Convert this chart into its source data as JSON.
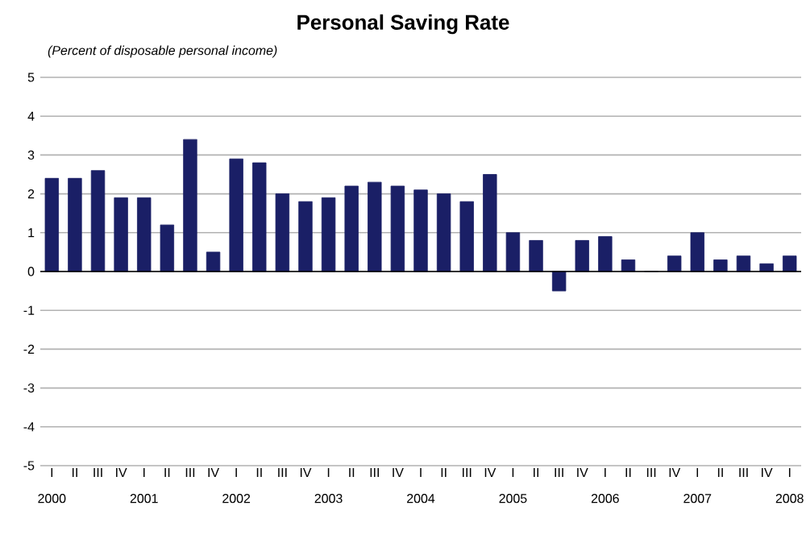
{
  "chart_data": {
    "type": "bar",
    "title": "Personal Saving Rate",
    "subtitle": "(Percent of disposable personal income)",
    "categories": [
      "I",
      "II",
      "III",
      "IV",
      "I",
      "II",
      "III",
      "IV",
      "I",
      "II",
      "III",
      "IV",
      "I",
      "II",
      "III",
      "IV",
      "I",
      "II",
      "III",
      "IV",
      "I",
      "II",
      "III",
      "IV",
      "I",
      "II",
      "III",
      "IV",
      "I",
      "II",
      "III",
      "IV",
      "I"
    ],
    "values": [
      2.4,
      2.4,
      2.6,
      1.9,
      1.9,
      1.2,
      3.4,
      0.5,
      2.9,
      2.8,
      2.0,
      1.8,
      1.9,
      2.2,
      2.3,
      2.2,
      2.1,
      2.0,
      1.8,
      2.5,
      1.0,
      0.8,
      -0.5,
      0.8,
      0.9,
      0.3,
      0.0,
      0.4,
      1.0,
      0.3,
      0.4,
      0.2,
      0.4
    ],
    "color": "#1a1f66",
    "ylim": [
      -5,
      5
    ],
    "yticks": [
      -5,
      -4,
      -3,
      -2,
      -1,
      0,
      1,
      2,
      3,
      4,
      5
    ],
    "grid": "y",
    "annotations": [
      "2000",
      "2001",
      "2002",
      "2003",
      "2004",
      "2005",
      "2006",
      "2007",
      "2008"
    ]
  }
}
